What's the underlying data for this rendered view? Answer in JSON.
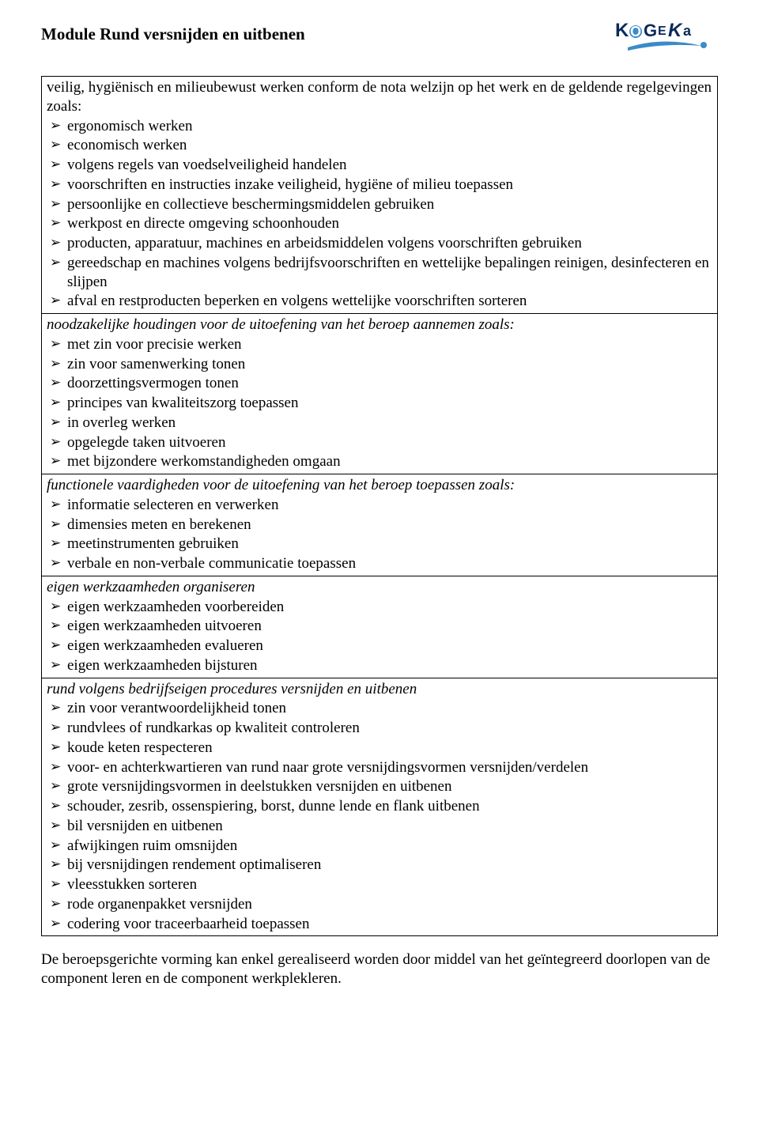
{
  "title": "Module Rund versnijden en uitbenen",
  "logo_text_top": "KOGEKA",
  "sections": [
    {
      "intro_plain": "veilig, hygiënisch en milieubewust werken conform de nota welzijn op het werk en de geldende regelgevingen zoals:",
      "italic": false,
      "items": [
        "ergonomisch werken",
        "economisch werken",
        "volgens regels van voedselveiligheid handelen",
        "voorschriften en instructies inzake veiligheid, hygiëne of milieu toepassen",
        "persoonlijke en collectieve beschermingsmiddelen gebruiken",
        "werkpost en directe omgeving schoonhouden",
        "producten, apparatuur, machines en arbeidsmiddelen volgens voorschriften gebruiken",
        "gereedschap en machines volgens bedrijfsvoorschriften en wettelijke bepalingen reinigen, desinfecteren en slijpen",
        "afval en restproducten beperken en volgens wettelijke voorschriften sorteren"
      ]
    },
    {
      "intro_plain": "noodzakelijke houdingen voor de uitoefening van het beroep aannemen zoals:",
      "italic": true,
      "items": [
        "met zin voor precisie werken",
        "zin voor samenwerking tonen",
        "doorzettingsvermogen tonen",
        "principes van kwaliteitszorg toepassen",
        "in overleg werken",
        "opgelegde taken uitvoeren",
        "met bijzondere werkomstandigheden omgaan"
      ]
    },
    {
      "intro_plain": "functionele vaardigheden voor de uitoefening van het beroep toepassen zoals:",
      "italic": true,
      "items": [
        "informatie selecteren en verwerken",
        "dimensies meten en berekenen",
        "meetinstrumenten gebruiken",
        "verbale en non-verbale communicatie toepassen"
      ]
    },
    {
      "intro_plain": "eigen werkzaamheden organiseren",
      "italic": true,
      "items": [
        "eigen werkzaamheden voorbereiden",
        "eigen werkzaamheden uitvoeren",
        "eigen werkzaamheden evalueren",
        "eigen werkzaamheden bijsturen"
      ]
    },
    {
      "intro_plain": "rund volgens bedrijfseigen procedures versnijden en uitbenen",
      "italic": true,
      "items": [
        "zin voor verantwoordelijkheid tonen",
        "rundvlees of rundkarkas op kwaliteit controleren",
        "koude keten respecteren",
        "voor- en achterkwartieren van rund naar grote versnijdingsvormen versnijden/verdelen",
        "grote versnijdingsvormen in deelstukken versnijden en uitbenen",
        "schouder, zesrib, ossenspiering, borst, dunne lende en flank uitbenen",
        "bil versnijden en uitbenen",
        "afwijkingen ruim omsnijden",
        "bij versnijdingen rendement optimaliseren",
        "vleesstukken sorteren",
        "rode organenpakket versnijden",
        "codering voor traceerbaarheid toepassen"
      ]
    }
  ],
  "footer_text": "De beroepsgerichte vorming kan enkel gerealiseerd worden door middel van het geïntegreerd doorlopen van de component leren en de component werkplekleren.",
  "logo_colors": {
    "text": "#0a2a5a",
    "swoosh": "#3b8bc8"
  }
}
